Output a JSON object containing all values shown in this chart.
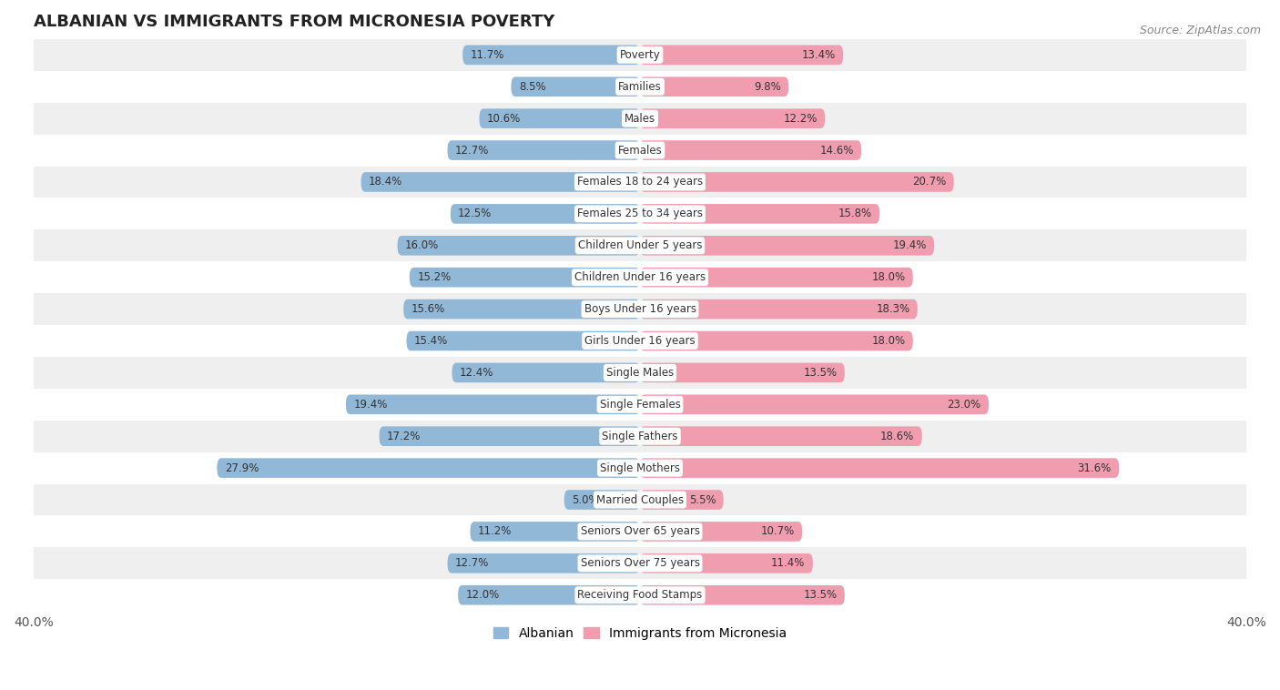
{
  "title": "ALBANIAN VS IMMIGRANTS FROM MICRONESIA POVERTY",
  "source": "Source: ZipAtlas.com",
  "categories": [
    "Poverty",
    "Families",
    "Males",
    "Females",
    "Females 18 to 24 years",
    "Females 25 to 34 years",
    "Children Under 5 years",
    "Children Under 16 years",
    "Boys Under 16 years",
    "Girls Under 16 years",
    "Single Males",
    "Single Females",
    "Single Fathers",
    "Single Mothers",
    "Married Couples",
    "Seniors Over 65 years",
    "Seniors Over 75 years",
    "Receiving Food Stamps"
  ],
  "albanian": [
    11.7,
    8.5,
    10.6,
    12.7,
    18.4,
    12.5,
    16.0,
    15.2,
    15.6,
    15.4,
    12.4,
    19.4,
    17.2,
    27.9,
    5.0,
    11.2,
    12.7,
    12.0
  ],
  "micronesia": [
    13.4,
    9.8,
    12.2,
    14.6,
    20.7,
    15.8,
    19.4,
    18.0,
    18.3,
    18.0,
    13.5,
    23.0,
    18.6,
    31.6,
    5.5,
    10.7,
    11.4,
    13.5
  ],
  "albanian_color": "#92b8d8",
  "micronesia_color": "#f09db0",
  "background_row_light": "#efefef",
  "background_row_white": "#ffffff",
  "xlim": 40.0,
  "bar_height": 0.62,
  "legend_label_albanian": "Albanian",
  "legend_label_micronesia": "Immigrants from Micronesia"
}
